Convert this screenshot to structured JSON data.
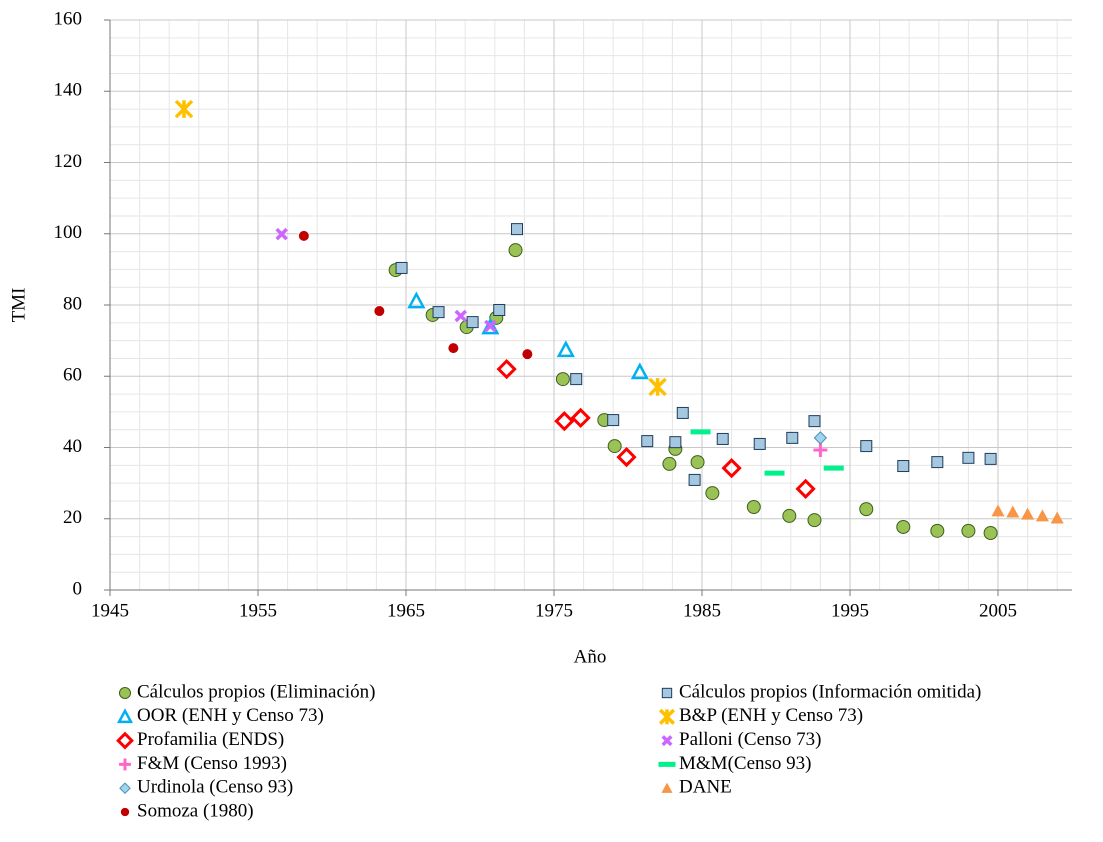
{
  "chart_data": {
    "type": "scatter",
    "x_label": "Año",
    "y_label": "TMI",
    "xlim": [
      1945,
      2010
    ],
    "ylim": [
      0,
      160
    ],
    "xticks": [
      1945,
      1955,
      1965,
      1975,
      1985,
      1995,
      2005
    ],
    "yticks": [
      0,
      20,
      40,
      60,
      80,
      100,
      120,
      140,
      160
    ],
    "grid": true,
    "minor_grid": true,
    "legend": "bottom",
    "series": [
      {
        "name": "Cálculos propios (Eliminación)",
        "marker": "circle",
        "color": "#9bc255",
        "edge": "#3d5f20",
        "x": [
          1964.3,
          1966.8,
          1969.1,
          1971.1,
          1972.4,
          1975.6,
          1978.4,
          1979.1,
          1982.8,
          1983.2,
          1984.7,
          1985.7,
          1988.5,
          1990.9,
          1992.6,
          1996.1,
          1998.6,
          2000.9,
          2003.0,
          2004.5
        ],
        "y": [
          89.8,
          77.2,
          73.8,
          76.4,
          95.4,
          59.2,
          47.7,
          40.4,
          35.4,
          39.6,
          35.9,
          27.2,
          23.3,
          20.8,
          19.6,
          22.7,
          17.7,
          16.6,
          16.6,
          16.0
        ]
      },
      {
        "name": "Cálculos propios (Información omitida)",
        "marker": "square",
        "color": "#a6c7e0",
        "edge": "#1f3d5c",
        "x": [
          1964.7,
          1967.2,
          1969.5,
          1971.3,
          1972.5,
          1976.5,
          1979.0,
          1981.3,
          1983.2,
          1983.7,
          1984.5,
          1986.4,
          1988.9,
          1991.1,
          1992.6,
          1996.1,
          1998.6,
          2000.9,
          2003.0,
          2004.5
        ],
        "y": [
          90.4,
          78.0,
          75.2,
          78.6,
          101.3,
          59.2,
          47.7,
          41.8,
          41.5,
          49.7,
          30.9,
          42.4,
          41.0,
          42.7,
          47.4,
          40.4,
          34.8,
          35.9,
          37.1,
          36.8
        ]
      },
      {
        "name": "OOR (ENH y Censo 73)",
        "marker": "triangle",
        "color": "#00b0f0",
        "x": [
          1965.7,
          1970.7,
          1975.8,
          1980.8
        ],
        "y": [
          81.1,
          73.8,
          67.4,
          61.2
        ]
      },
      {
        "name": "B&P (ENH y Censo 73)",
        "marker": "asterisk",
        "color": "#ffc000",
        "x": [
          1950,
          1982
        ],
        "y": [
          135,
          57
        ]
      },
      {
        "name": "Profamilia (ENDS)",
        "marker": "diamond",
        "color": "#ff0000",
        "x": [
          1971.8,
          1975.7,
          1976.8,
          1979.9,
          1987,
          1992
        ],
        "y": [
          62,
          47.4,
          48.3,
          37.3,
          34.2,
          28.4
        ]
      },
      {
        "name": "Palloni (Censo 73)",
        "marker": "x",
        "color": "#cc66ff",
        "x": [
          1956.6,
          1968.7,
          1970.7
        ],
        "y": [
          99.9,
          76.9,
          74.1
        ]
      },
      {
        "name": "F&M (Censo 1993)",
        "marker": "plus",
        "color": "#ff66cc",
        "x": [
          1993
        ],
        "y": [
          39.3
        ]
      },
      {
        "name": "M&M(Censo 93)",
        "marker": "dash",
        "color": "#00f08c",
        "x": [
          1984.9,
          1989.9,
          1993.9
        ],
        "y": [
          44.4,
          32.8,
          34.2
        ]
      },
      {
        "name": "Urdinola (Censo 93)",
        "marker": "smalldiamond",
        "color": "#9fd4ec",
        "edge": "#4a90b8",
        "x": [
          1993
        ],
        "y": [
          42.7
        ]
      },
      {
        "name": "DANE",
        "marker": "filltriangle",
        "color": "#f79646",
        "x": [
          2005,
          2006,
          2007,
          2008,
          2009
        ],
        "y": [
          22.2,
          21.9,
          21.3,
          20.8,
          20.2
        ]
      },
      {
        "name": "Somoza (1980)",
        "marker": "dot",
        "color": "#c00000",
        "edge": "#ffffff",
        "x": [
          1958.1,
          1963.2,
          1968.2,
          1973.2
        ],
        "y": [
          99.4,
          78.3,
          67.9,
          66.2
        ]
      }
    ]
  }
}
